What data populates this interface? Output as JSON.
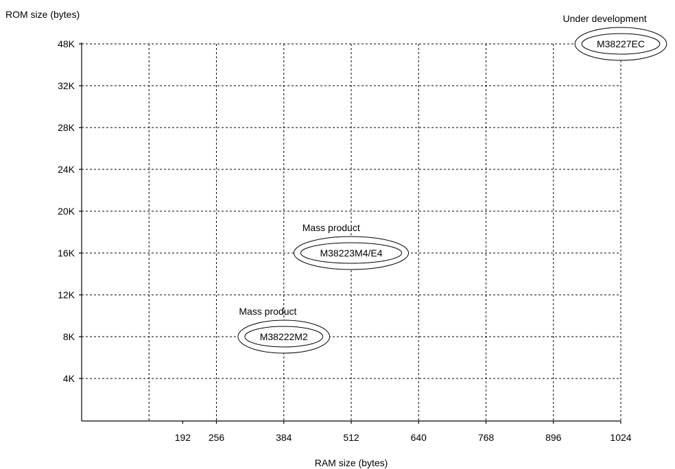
{
  "chart_data": {
    "type": "scatter",
    "title": "",
    "xlabel": "RAM size (bytes)",
    "ylabel": "ROM size (bytes)",
    "x_ticks": [
      192,
      256,
      384,
      512,
      640,
      768,
      896,
      1024
    ],
    "y_ticks": [
      "4K",
      "8K",
      "12K",
      "16K",
      "20K",
      "24K",
      "28K",
      "32K",
      "48K"
    ],
    "grid": true,
    "points": [
      {
        "label": "M38222M2",
        "status": "Mass product",
        "ram": 384,
        "rom": "8K"
      },
      {
        "label": "M38223M4/E4",
        "status": "Mass product",
        "ram": 512,
        "rom": "16K"
      },
      {
        "label": "M38227EC",
        "status": "Under development",
        "ram": 1024,
        "rom": "48K"
      }
    ]
  }
}
